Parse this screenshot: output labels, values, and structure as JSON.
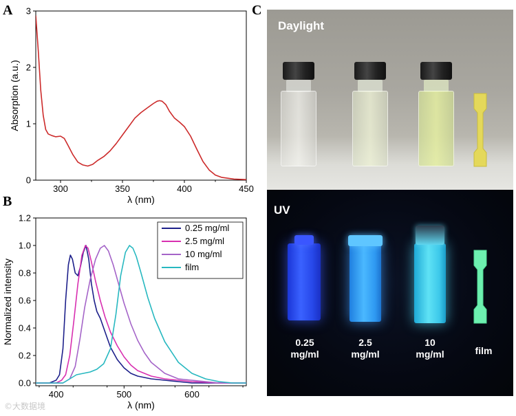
{
  "panels": {
    "a": "A",
    "b": "B",
    "c": "C"
  },
  "photo": {
    "daylight_title": "Daylight",
    "uv_title": "UV",
    "uv_labels": [
      {
        "line1": "0.25",
        "line2": "mg/ml"
      },
      {
        "line1": "2.5",
        "line2": "mg/ml"
      },
      {
        "line1": "10",
        "line2": "mg/ml"
      },
      {
        "line1": "film",
        "line2": ""
      }
    ]
  },
  "watermark": "©大数据境",
  "chart_data": [
    {
      "type": "line",
      "panel": "A",
      "xlabel": "λ (nm)",
      "ylabel": "Absorption (a.u.)",
      "xlim": [
        280,
        450
      ],
      "ylim": [
        0,
        3
      ],
      "xticks": [
        300,
        350,
        400,
        450
      ],
      "yticks": [
        0,
        1,
        2,
        3
      ],
      "color": "#cc2a2a",
      "x": [
        280,
        282,
        284,
        286,
        288,
        290,
        293,
        296,
        300,
        303,
        306,
        310,
        314,
        318,
        322,
        326,
        330,
        335,
        340,
        345,
        350,
        355,
        360,
        365,
        370,
        375,
        378,
        380,
        382,
        385,
        388,
        392,
        396,
        400,
        405,
        410,
        415,
        420,
        425,
        430,
        440,
        450
      ],
      "y": [
        2.92,
        2.3,
        1.6,
        1.15,
        0.9,
        0.82,
        0.79,
        0.77,
        0.78,
        0.74,
        0.62,
        0.45,
        0.32,
        0.27,
        0.25,
        0.28,
        0.35,
        0.42,
        0.52,
        0.65,
        0.8,
        0.95,
        1.1,
        1.2,
        1.28,
        1.36,
        1.4,
        1.41,
        1.4,
        1.34,
        1.22,
        1.1,
        1.03,
        0.95,
        0.78,
        0.55,
        0.33,
        0.18,
        0.09,
        0.05,
        0.02,
        0.01
      ]
    },
    {
      "type": "line",
      "panel": "B",
      "xlabel": "λ (nm)",
      "ylabel": "Normalized intensity",
      "xlim": [
        370,
        680
      ],
      "ylim": [
        -0.02,
        1.2
      ],
      "xticks": [
        400,
        500,
        600
      ],
      "yticks": [
        0.0,
        0.2,
        0.4,
        0.6,
        0.8,
        1.0,
        1.2
      ],
      "legend": "top-right",
      "series": [
        {
          "name": "0.25 mg/ml",
          "color": "#1c1f8a",
          "x": [
            370,
            390,
            400,
            405,
            410,
            414,
            418,
            421,
            424,
            428,
            432,
            436,
            440,
            444,
            448,
            452,
            456,
            460,
            465,
            470,
            475,
            480,
            490,
            500,
            510,
            520,
            540,
            560,
            580,
            600,
            640,
            680
          ],
          "y": [
            0.0,
            0.0,
            0.02,
            0.06,
            0.25,
            0.6,
            0.86,
            0.93,
            0.9,
            0.8,
            0.78,
            0.85,
            0.95,
            1.0,
            0.9,
            0.72,
            0.6,
            0.52,
            0.47,
            0.4,
            0.33,
            0.26,
            0.17,
            0.11,
            0.07,
            0.05,
            0.03,
            0.02,
            0.01,
            0.0,
            0.0,
            0.0
          ]
        },
        {
          "name": "2.5 mg/ml",
          "color": "#d82fb0",
          "x": [
            370,
            400,
            408,
            414,
            420,
            426,
            432,
            438,
            443,
            447,
            452,
            458,
            465,
            472,
            480,
            490,
            500,
            510,
            520,
            540,
            560,
            580,
            600,
            640,
            680
          ],
          "y": [
            0.0,
            0.0,
            0.02,
            0.06,
            0.2,
            0.45,
            0.72,
            0.93,
            1.0,
            0.98,
            0.88,
            0.74,
            0.6,
            0.48,
            0.37,
            0.27,
            0.19,
            0.13,
            0.09,
            0.05,
            0.03,
            0.02,
            0.01,
            0.0,
            0.0
          ]
        },
        {
          "name": "10 mg/ml",
          "color": "#a464c8",
          "x": [
            370,
            410,
            420,
            428,
            435,
            442,
            450,
            458,
            465,
            471,
            477,
            484,
            492,
            500,
            510,
            520,
            530,
            540,
            560,
            580,
            600,
            620,
            640,
            680
          ],
          "y": [
            0.0,
            0.0,
            0.03,
            0.12,
            0.32,
            0.55,
            0.75,
            0.9,
            0.98,
            1.0,
            0.96,
            0.86,
            0.72,
            0.58,
            0.43,
            0.31,
            0.22,
            0.15,
            0.07,
            0.03,
            0.02,
            0.01,
            0.0,
            0.0
          ]
        },
        {
          "name": "film",
          "color": "#27b8c0",
          "x": [
            370,
            410,
            420,
            430,
            440,
            450,
            460,
            470,
            480,
            488,
            495,
            502,
            508,
            513,
            518,
            525,
            535,
            545,
            560,
            580,
            600,
            620,
            640,
            660,
            680
          ],
          "y": [
            0.0,
            0.0,
            0.03,
            0.06,
            0.07,
            0.08,
            0.1,
            0.14,
            0.25,
            0.5,
            0.78,
            0.95,
            1.0,
            0.98,
            0.92,
            0.8,
            0.62,
            0.47,
            0.3,
            0.15,
            0.07,
            0.03,
            0.01,
            0.0,
            0.0
          ]
        }
      ]
    }
  ]
}
